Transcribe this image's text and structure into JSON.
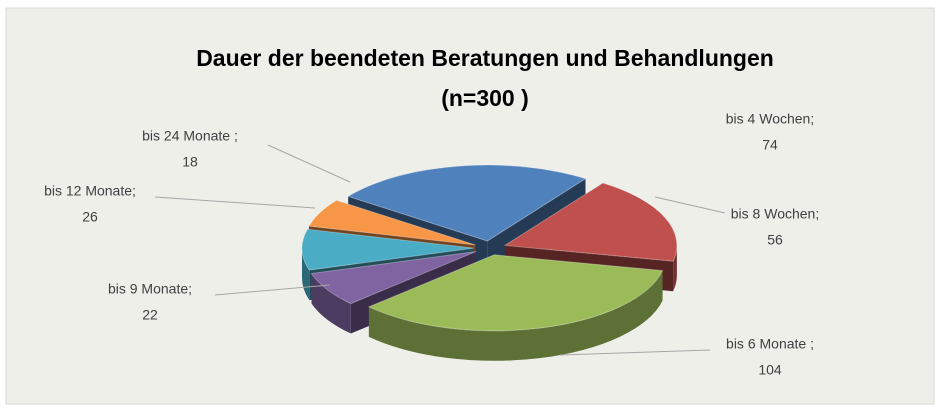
{
  "chart_data": {
    "type": "pie3d",
    "title": "Dauer der beendeten Beratungen und Behandlungen",
    "subtitle": "(n=300  )",
    "categories": [
      "bis 4 Wochen;",
      "bis 8 Wochen;",
      "bis 6 Monate ;",
      "bis 9 Monate;",
      "bis 12 Monate;",
      "bis 24 Monate ;"
    ],
    "values": [
      74,
      56,
      104,
      22,
      26,
      18
    ],
    "colors": [
      "#4f81bd",
      "#c0504d",
      "#9bbb59",
      "#8064a2",
      "#4bacc6",
      "#f79646"
    ]
  }
}
